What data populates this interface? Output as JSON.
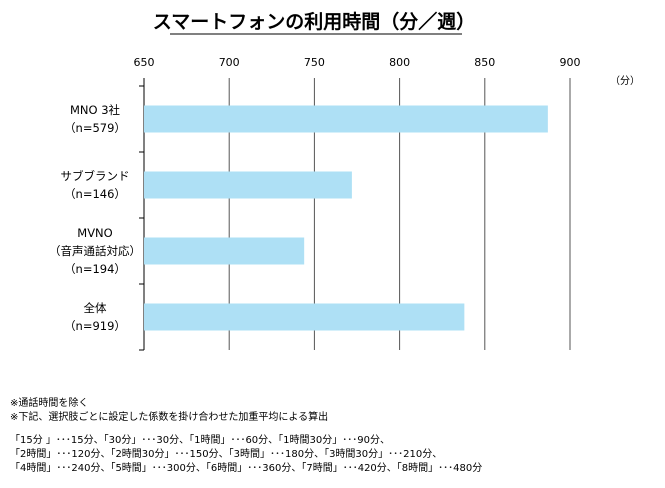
{
  "chart_data": {
    "type": "bar",
    "orientation": "horizontal",
    "title": "スマートフォンの利用時間（分／週）",
    "unit": "（分）",
    "xlim": [
      650,
      900
    ],
    "x_ticks": [
      "650",
      "700",
      "750",
      "800",
      "850",
      "900"
    ],
    "grid": true,
    "categories": [
      [
        "MNO 3社",
        "（n=579）"
      ],
      [
        "サブブランド",
        "（n=146）"
      ],
      [
        "MVNO",
        "（音声通話対応）",
        "（n=194）"
      ],
      [
        "全体",
        "（n=919）"
      ]
    ],
    "values": [
      887,
      772,
      744,
      838
    ],
    "bar_color": "#aee0f5"
  },
  "notes": [
    "※通話時間を除く",
    "※下記、選択肢ごとに設定した係数を掛け合わせた加重平均による算出"
  ],
  "legend_lines": [
    "「15分 」･･･15分、「30分」･･･30分、「1時間」･･･60分、「1時間30分」･･･90分、",
    "「2時間」･･･120分、「2時間30分」･･･150分、「3時間」･･･180分、「3時間30分」･･･210分、",
    "「4時間」･･･240分、「5時間」･･･300分、「6時間」･･･360分、「7時間」･･･420分、「8時間」･･･480分"
  ]
}
